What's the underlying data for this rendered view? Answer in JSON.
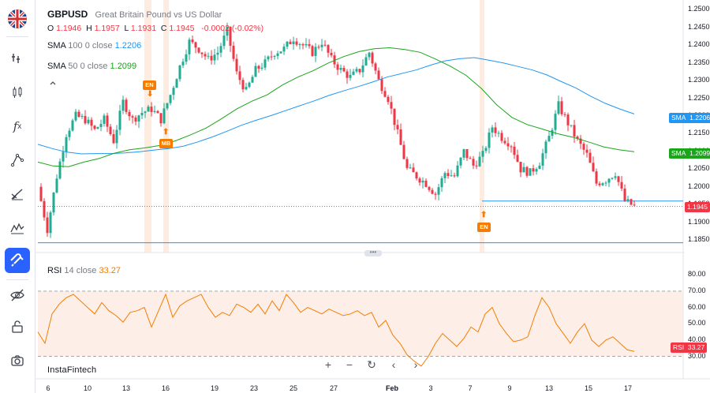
{
  "symbol": {
    "ticker": "GBPUSD",
    "name": "Great Britain Pound vs US Dollar"
  },
  "ohlc": {
    "o_label": "O",
    "o": "1.1946",
    "h_label": "H",
    "h": "1.1957",
    "l_label": "L",
    "l": "1.1931",
    "c_label": "C",
    "c": "1.1945",
    "change": "-0.0002 (-0.02%)"
  },
  "indicators": [
    {
      "label": "SMA",
      "params": "100 0 close",
      "value": "1.2206",
      "color": "#2196f3"
    },
    {
      "label": "SMA",
      "params": "50 0 close",
      "value": "1.2099",
      "color": "#1aa51a"
    }
  ],
  "rsi": {
    "label": "RSI",
    "params": "14 close",
    "value": "33.27",
    "color": "#f57c00"
  },
  "price_axis": [
    "1.2500",
    "1.2450",
    "1.2400",
    "1.2350",
    "1.2300",
    "1.2250",
    "1.2200",
    "1.2150",
    "1.2100",
    "1.2050",
    "1.2000",
    "1.1950",
    "1.1900",
    "1.1850"
  ],
  "rsi_axis": [
    "80.00",
    "70.00",
    "60.00",
    "50.00",
    "40.00",
    "30.00"
  ],
  "price_tags": {
    "sma100": {
      "label": "SMA",
      "value": "1.2206",
      "color": "#2196f3"
    },
    "sma50": {
      "label": "SMA",
      "value": "1.2099",
      "color": "#1aa51a"
    },
    "last": {
      "value": "1.1945",
      "color": "#f23645"
    },
    "rsi": {
      "label": "RSI",
      "value": "33.27",
      "color": "#f23645"
    }
  },
  "x_labels": [
    "6",
    "10",
    "13",
    "16",
    "19",
    "23",
    "25",
    "27",
    "Feb",
    "3",
    "7",
    "9",
    "13",
    "15",
    "17"
  ],
  "markers": [
    "EN",
    "MB",
    "EN"
  ],
  "brand": "InstaFintech",
  "controls": [
    "+",
    "−",
    "↻",
    "‹",
    "›"
  ],
  "toolbar": [
    "flag-gb-icon",
    "cursor-icon",
    "candles-icon",
    "fx-icon",
    "trend-line-icon",
    "draw-icon",
    "pattern-icon",
    "magnet-icon",
    "eye-icon",
    "lock-icon",
    "camera-icon"
  ],
  "chart_data": {
    "type": "line",
    "ylim": [
      1.183,
      1.251
    ],
    "y_ticks": [
      1.25,
      1.245,
      1.24,
      1.235,
      1.23,
      1.225,
      1.22,
      1.215,
      1.21,
      1.205,
      1.2,
      1.195,
      1.19,
      1.185
    ],
    "sma100": [
      1.212,
      1.2108,
      1.2098,
      1.2093,
      1.2094,
      1.2094,
      1.2096,
      1.2099,
      1.2104,
      1.2108,
      1.2115,
      1.2127,
      1.2141,
      1.2157,
      1.2174,
      1.2188,
      1.2201,
      1.2215,
      1.2229,
      1.2243,
      1.2258,
      1.2271,
      1.2283,
      1.2296,
      1.231,
      1.232,
      1.233,
      1.2344,
      1.2356,
      1.2362,
      1.2365,
      1.2358,
      1.235,
      1.234,
      1.233,
      1.2316,
      1.2297,
      1.2279,
      1.2256,
      1.2236,
      1.222,
      1.2206
    ],
    "sma50": [
      1.207,
      1.2059,
      1.2057,
      1.207,
      1.208,
      1.2095,
      1.2105,
      1.211,
      1.2117,
      1.213,
      1.2147,
      1.2166,
      1.2192,
      1.222,
      1.2242,
      1.226,
      1.2288,
      1.231,
      1.2328,
      1.235,
      1.2368,
      1.2382,
      1.239,
      1.2393,
      1.2388,
      1.238,
      1.2361,
      1.234,
      1.2315,
      1.2278,
      1.2232,
      1.2196,
      1.2176,
      1.2163,
      1.215,
      1.214,
      1.2127,
      1.2113,
      1.2105,
      1.2099
    ],
    "price_path": [
      1.2,
      1.188,
      1.203,
      1.215,
      1.22,
      1.219,
      1.216,
      1.219,
      1.213,
      1.224,
      1.219,
      1.221,
      1.222,
      1.219,
      1.226,
      1.234,
      1.241,
      1.239,
      1.236,
      1.238,
      1.244,
      1.232,
      1.227,
      1.233,
      1.235,
      1.238,
      1.239,
      1.242,
      1.24,
      1.238,
      1.241,
      1.236,
      1.233,
      1.231,
      1.233,
      1.238,
      1.23,
      1.225,
      1.215,
      1.205,
      1.203,
      1.201,
      1.198,
      1.204,
      1.203,
      1.21,
      1.206,
      1.209,
      1.217,
      1.214,
      1.212,
      1.205,
      1.204,
      1.207,
      1.214,
      1.223,
      1.218,
      1.213,
      1.209,
      1.201,
      1.202,
      1.204,
      1.196,
      1.1945
    ],
    "hlines": [
      1.196,
      1.1842
    ],
    "last": 1.1945
  },
  "rsi_data": {
    "ylim": [
      23,
      84
    ],
    "levels": [
      70,
      30
    ],
    "values": [
      45,
      38,
      56,
      62,
      66,
      68,
      64,
      60,
      56,
      63,
      58,
      55,
      51,
      57,
      58,
      60,
      48,
      58,
      68,
      54,
      61,
      64,
      66,
      68,
      60,
      54,
      57,
      55,
      62,
      60,
      57,
      62,
      56,
      64,
      58,
      68,
      63,
      57,
      60,
      58,
      56,
      59,
      57,
      55,
      56,
      58,
      55,
      57,
      48,
      52,
      43,
      38,
      31,
      27,
      24,
      30,
      38,
      44,
      40,
      36,
      41,
      48,
      45,
      56,
      60,
      50,
      44,
      39,
      40,
      42,
      55,
      66,
      60,
      50,
      44,
      38,
      45,
      50,
      40,
      36,
      40,
      42,
      38,
      34,
      33
    ]
  }
}
